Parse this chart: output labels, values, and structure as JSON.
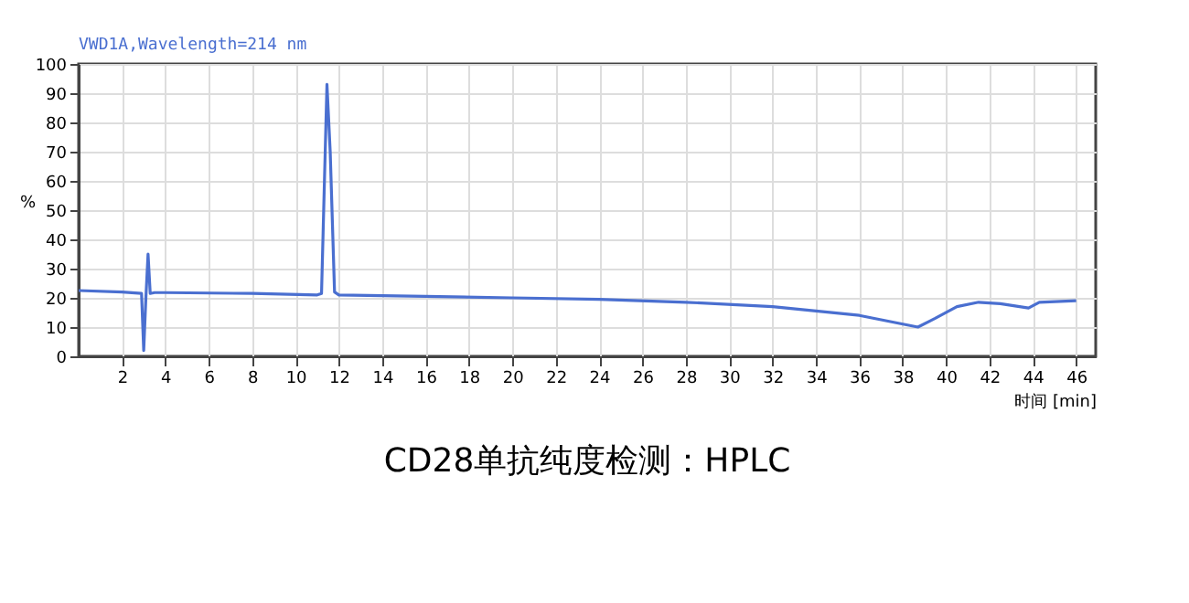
{
  "chart_data": {
    "type": "line",
    "title": "CD28单抗纯度检测：HPLC",
    "xlabel": "时间 [min]",
    "ylabel": "%",
    "annotations": [
      "VWD1A,Wavelength=214 nm"
    ],
    "x": [
      0,
      2,
      2.9,
      3.0,
      3.1,
      3.2,
      3.3,
      3.5,
      4,
      8,
      11,
      11.2,
      11.45,
      11.6,
      11.8,
      12,
      16,
      20,
      24,
      28,
      32,
      36,
      38.7,
      39.5,
      40.5,
      41.5,
      42.5,
      43.8,
      44.3,
      46
    ],
    "series": [
      {
        "color": "#4a6fd0",
        "values": [
          22.5,
          22,
          21.5,
          2,
          20,
          35,
          21.5,
          21.8,
          21.8,
          21.5,
          21,
          21.5,
          93,
          70,
          22,
          21,
          20.5,
          20,
          19.5,
          18.5,
          17,
          14,
          10,
          13,
          17,
          18.5,
          18,
          16.5,
          18.5,
          19
        ]
      }
    ],
    "xlim": [
      0,
      46.9
    ],
    "xticks": [
      2,
      4,
      6,
      8,
      10,
      12,
      14,
      16,
      18,
      20,
      22,
      24,
      26,
      28,
      30,
      32,
      34,
      36,
      38,
      40,
      42,
      44,
      46
    ],
    "ylim": [
      0,
      100
    ],
    "yticks": [
      0,
      10,
      20,
      30,
      40,
      50,
      60,
      70,
      80,
      90,
      100
    ],
    "grid": true,
    "line_style": "solid",
    "marker": "none"
  }
}
